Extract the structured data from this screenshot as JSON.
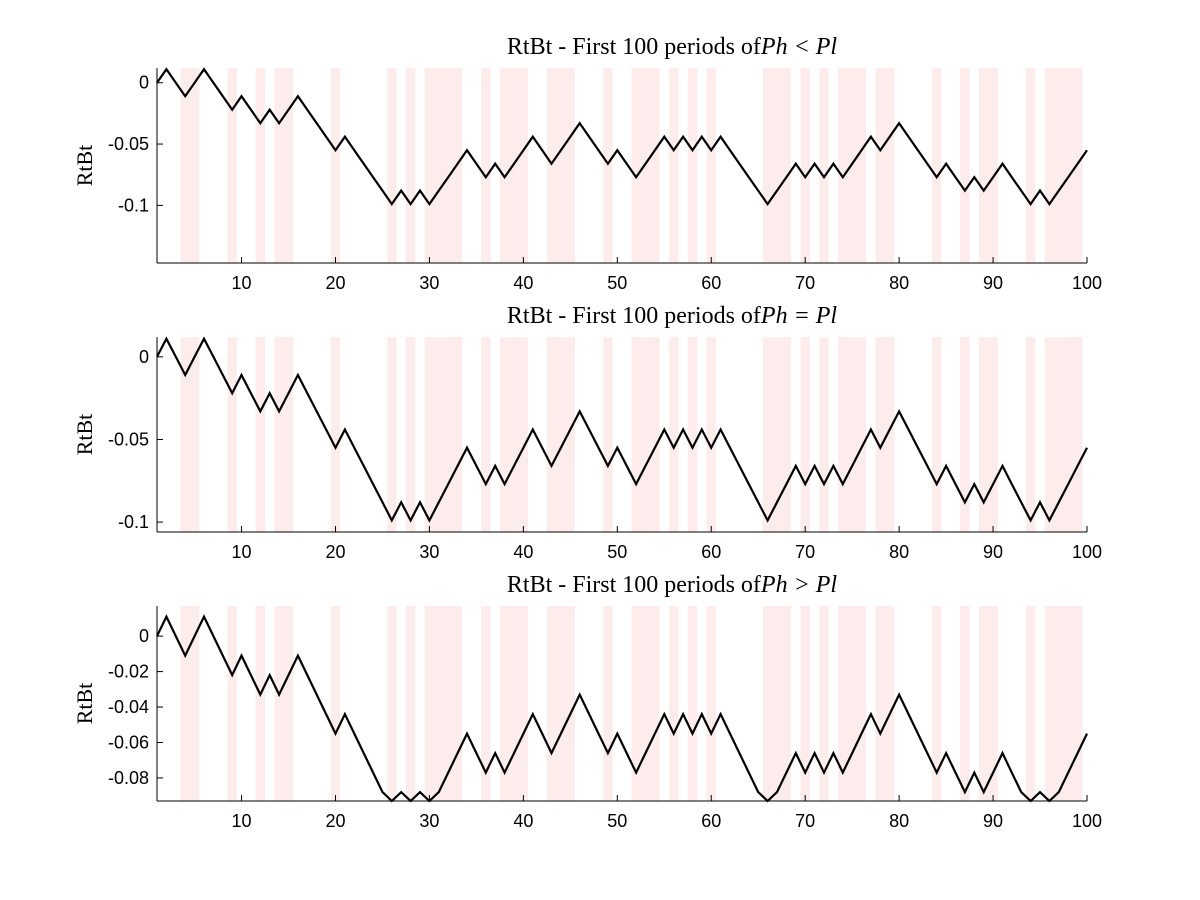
{
  "chart_data": [
    {
      "type": "line",
      "title": "RtBt - First 100 periods of",
      "title_math": "Ph < Pl",
      "xlabel": "",
      "ylabel": "RtBt",
      "xlim": [
        1,
        100
      ],
      "ylim": [
        -0.147,
        0.012
      ],
      "xticks": [
        10,
        20,
        30,
        40,
        50,
        60,
        70,
        80,
        90,
        100
      ],
      "yticks": [
        0,
        -0.05,
        -0.1
      ],
      "ytick_labels": [
        "0",
        "-0.05",
        "-0.1"
      ],
      "shade_color": "#fdecec",
      "line_color": "#000000",
      "shaded_periods": [
        4,
        5,
        9,
        12,
        14,
        15,
        20,
        26,
        28,
        30,
        31,
        32,
        33,
        36,
        38,
        39,
        40,
        43,
        44,
        45,
        49,
        52,
        53,
        54,
        56,
        58,
        60,
        66,
        67,
        68,
        70,
        72,
        74,
        75,
        76,
        78,
        79,
        84,
        87,
        89,
        90,
        94,
        96,
        97,
        98,
        99
      ],
      "series": [
        {
          "x": [
            1,
            2,
            3,
            4,
            5,
            6,
            7,
            8,
            9,
            10,
            11,
            12,
            13,
            14,
            15,
            16,
            17,
            18,
            19,
            20,
            21,
            22,
            23,
            24,
            25,
            26,
            27,
            28,
            29,
            30,
            31,
            32,
            33,
            34,
            35,
            36,
            37,
            38,
            39,
            40,
            41,
            42,
            43,
            44,
            45,
            46,
            47,
            48,
            49,
            50,
            51,
            52,
            53,
            54,
            55,
            56,
            57,
            58,
            59,
            60,
            61,
            62,
            63,
            64,
            65,
            66,
            67,
            68,
            69,
            70,
            71,
            72,
            73,
            74,
            75,
            76,
            77,
            78,
            79,
            80,
            81,
            82,
            83,
            84,
            85,
            86,
            87,
            88,
            89,
            90,
            91,
            92,
            93,
            94,
            95,
            96,
            97,
            98,
            99,
            100
          ],
          "values": [
            0,
            0.011,
            0,
            -0.011,
            0,
            0.011,
            0,
            -0.011,
            -0.022,
            -0.011,
            -0.022,
            -0.033,
            -0.022,
            -0.033,
            -0.022,
            -0.011,
            -0.022,
            -0.033,
            -0.044,
            -0.055,
            -0.044,
            -0.055,
            -0.066,
            -0.077,
            -0.088,
            -0.099,
            -0.088,
            -0.099,
            -0.088,
            -0.099,
            -0.088,
            -0.077,
            -0.066,
            -0.055,
            -0.066,
            -0.077,
            -0.066,
            -0.077,
            -0.066,
            -0.055,
            -0.044,
            -0.055,
            -0.066,
            -0.055,
            -0.044,
            -0.033,
            -0.044,
            -0.055,
            -0.066,
            -0.055,
            -0.066,
            -0.077,
            -0.066,
            -0.055,
            -0.044,
            -0.055,
            -0.044,
            -0.055,
            -0.044,
            -0.055,
            -0.044,
            -0.055,
            -0.066,
            -0.077,
            -0.088,
            -0.099,
            -0.088,
            -0.077,
            -0.066,
            -0.077,
            -0.066,
            -0.077,
            -0.066,
            -0.077,
            -0.066,
            -0.055,
            -0.044,
            -0.055,
            -0.044,
            -0.033,
            -0.044,
            -0.055,
            -0.066,
            -0.077,
            -0.066,
            -0.077,
            -0.088,
            -0.077,
            -0.088,
            -0.077,
            -0.066,
            -0.077,
            -0.088,
            -0.099,
            -0.088,
            -0.099,
            -0.088,
            -0.077,
            -0.066,
            -0.055
          ]
        }
      ]
    },
    {
      "type": "line",
      "title": "RtBt - First 100 periods of",
      "title_math": "Ph = Pl",
      "xlabel": "",
      "ylabel": "RtBt",
      "xlim": [
        1,
        100
      ],
      "ylim": [
        -0.106,
        0.012
      ],
      "xticks": [
        10,
        20,
        30,
        40,
        50,
        60,
        70,
        80,
        90,
        100
      ],
      "yticks": [
        0,
        -0.05,
        -0.1
      ],
      "ytick_labels": [
        "0",
        "-0.05",
        "-0.1"
      ],
      "shade_color": "#fdecec",
      "line_color": "#000000",
      "shaded_periods": [
        4,
        5,
        9,
        12,
        14,
        15,
        20,
        26,
        28,
        30,
        31,
        32,
        33,
        36,
        38,
        39,
        40,
        43,
        44,
        45,
        49,
        52,
        53,
        54,
        56,
        58,
        60,
        66,
        67,
        68,
        70,
        72,
        74,
        75,
        76,
        78,
        79,
        84,
        87,
        89,
        90,
        94,
        96,
        97,
        98,
        99
      ],
      "series": [
        {
          "x": [
            1,
            2,
            3,
            4,
            5,
            6,
            7,
            8,
            9,
            10,
            11,
            12,
            13,
            14,
            15,
            16,
            17,
            18,
            19,
            20,
            21,
            22,
            23,
            24,
            25,
            26,
            27,
            28,
            29,
            30,
            31,
            32,
            33,
            34,
            35,
            36,
            37,
            38,
            39,
            40,
            41,
            42,
            43,
            44,
            45,
            46,
            47,
            48,
            49,
            50,
            51,
            52,
            53,
            54,
            55,
            56,
            57,
            58,
            59,
            60,
            61,
            62,
            63,
            64,
            65,
            66,
            67,
            68,
            69,
            70,
            71,
            72,
            73,
            74,
            75,
            76,
            77,
            78,
            79,
            80,
            81,
            82,
            83,
            84,
            85,
            86,
            87,
            88,
            89,
            90,
            91,
            92,
            93,
            94,
            95,
            96,
            97,
            98,
            99,
            100
          ],
          "values": [
            0,
            0.011,
            0,
            -0.011,
            0,
            0.011,
            0,
            -0.011,
            -0.022,
            -0.011,
            -0.022,
            -0.033,
            -0.022,
            -0.033,
            -0.022,
            -0.011,
            -0.022,
            -0.033,
            -0.044,
            -0.055,
            -0.044,
            -0.055,
            -0.066,
            -0.077,
            -0.088,
            -0.099,
            -0.088,
            -0.099,
            -0.088,
            -0.099,
            -0.088,
            -0.077,
            -0.066,
            -0.055,
            -0.066,
            -0.077,
            -0.066,
            -0.077,
            -0.066,
            -0.055,
            -0.044,
            -0.055,
            -0.066,
            -0.055,
            -0.044,
            -0.033,
            -0.044,
            -0.055,
            -0.066,
            -0.055,
            -0.066,
            -0.077,
            -0.066,
            -0.055,
            -0.044,
            -0.055,
            -0.044,
            -0.055,
            -0.044,
            -0.055,
            -0.044,
            -0.055,
            -0.066,
            -0.077,
            -0.088,
            -0.099,
            -0.088,
            -0.077,
            -0.066,
            -0.077,
            -0.066,
            -0.077,
            -0.066,
            -0.077,
            -0.066,
            -0.055,
            -0.044,
            -0.055,
            -0.044,
            -0.033,
            -0.044,
            -0.055,
            -0.066,
            -0.077,
            -0.066,
            -0.077,
            -0.088,
            -0.077,
            -0.088,
            -0.077,
            -0.066,
            -0.077,
            -0.088,
            -0.099,
            -0.088,
            -0.099,
            -0.088,
            -0.077,
            -0.066,
            -0.055
          ]
        }
      ]
    },
    {
      "type": "line",
      "title": "RtBt - First 100 periods of",
      "title_math": "Ph > Pl",
      "xlabel": "",
      "ylabel": "RtBt",
      "xlim": [
        1,
        100
      ],
      "ylim": [
        -0.093,
        0.017
      ],
      "xticks": [
        10,
        20,
        30,
        40,
        50,
        60,
        70,
        80,
        90,
        100
      ],
      "yticks": [
        0,
        -0.02,
        -0.04,
        -0.06,
        -0.08
      ],
      "ytick_labels": [
        "0",
        "-0.02",
        "-0.04",
        "-0.06",
        "-0.08"
      ],
      "shade_color": "#fdecec",
      "line_color": "#000000",
      "shaded_periods": [
        4,
        5,
        9,
        12,
        14,
        15,
        20,
        26,
        28,
        30,
        31,
        32,
        33,
        36,
        38,
        39,
        40,
        43,
        44,
        45,
        49,
        52,
        53,
        54,
        56,
        58,
        60,
        66,
        67,
        68,
        70,
        72,
        74,
        75,
        76,
        78,
        79,
        84,
        87,
        89,
        90,
        94,
        96,
        97,
        98,
        99
      ],
      "series": [
        {
          "x": [
            1,
            2,
            3,
            4,
            5,
            6,
            7,
            8,
            9,
            10,
            11,
            12,
            13,
            14,
            15,
            16,
            17,
            18,
            19,
            20,
            21,
            22,
            23,
            24,
            25,
            26,
            27,
            28,
            29,
            30,
            31,
            32,
            33,
            34,
            35,
            36,
            37,
            38,
            39,
            40,
            41,
            42,
            43,
            44,
            45,
            46,
            47,
            48,
            49,
            50,
            51,
            52,
            53,
            54,
            55,
            56,
            57,
            58,
            59,
            60,
            61,
            62,
            63,
            64,
            65,
            66,
            67,
            68,
            69,
            70,
            71,
            72,
            73,
            74,
            75,
            76,
            77,
            78,
            79,
            80,
            81,
            82,
            83,
            84,
            85,
            86,
            87,
            88,
            89,
            90,
            91,
            92,
            93,
            94,
            95,
            96,
            97,
            98,
            99,
            100
          ],
          "values": [
            0,
            0.011,
            0,
            -0.011,
            0,
            0.011,
            0,
            -0.011,
            -0.022,
            -0.011,
            -0.022,
            -0.033,
            -0.022,
            -0.033,
            -0.022,
            -0.011,
            -0.022,
            -0.033,
            -0.044,
            -0.055,
            -0.044,
            -0.055,
            -0.066,
            -0.077,
            -0.088,
            -0.099,
            -0.088,
            -0.099,
            -0.088,
            -0.099,
            -0.088,
            -0.077,
            -0.066,
            -0.055,
            -0.066,
            -0.077,
            -0.066,
            -0.077,
            -0.066,
            -0.055,
            -0.044,
            -0.055,
            -0.066,
            -0.055,
            -0.044,
            -0.033,
            -0.044,
            -0.055,
            -0.066,
            -0.055,
            -0.066,
            -0.077,
            -0.066,
            -0.055,
            -0.044,
            -0.055,
            -0.044,
            -0.055,
            -0.044,
            -0.055,
            -0.044,
            -0.055,
            -0.066,
            -0.077,
            -0.088,
            -0.099,
            -0.088,
            -0.077,
            -0.066,
            -0.077,
            -0.066,
            -0.077,
            -0.066,
            -0.077,
            -0.066,
            -0.055,
            -0.044,
            -0.055,
            -0.044,
            -0.033,
            -0.044,
            -0.055,
            -0.066,
            -0.077,
            -0.066,
            -0.077,
            -0.088,
            -0.077,
            -0.088,
            -0.077,
            -0.066,
            -0.077,
            -0.088,
            -0.099,
            -0.088,
            -0.099,
            -0.088,
            -0.077,
            -0.066,
            -0.055
          ]
        }
      ]
    }
  ]
}
